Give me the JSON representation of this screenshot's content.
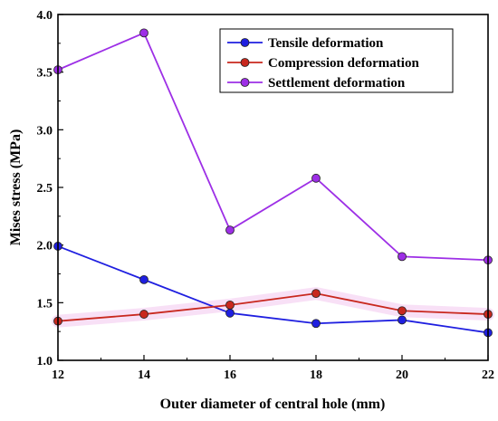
{
  "chart_data": {
    "type": "line",
    "xlabel": "Outer diameter of central hole (mm)",
    "ylabel": "Mises stress (MPa)",
    "x": [
      12,
      14,
      16,
      18,
      20,
      22
    ],
    "xlim": [
      12,
      22
    ],
    "ylim": [
      1.0,
      4.0
    ],
    "xticks": [
      "12",
      "14",
      "16",
      "18",
      "20",
      "22"
    ],
    "yticks": [
      "1.0",
      "1.5",
      "2.0",
      "2.5",
      "3.0",
      "3.5",
      "4.0"
    ],
    "grid": false,
    "legend_position": "top-right",
    "series": [
      {
        "name": "Tensile deformation",
        "color": "#1f1fe0",
        "values": [
          1.99,
          1.7,
          1.41,
          1.32,
          1.35,
          1.24
        ]
      },
      {
        "name": "Compression deformation",
        "color": "#c8281e",
        "values": [
          1.34,
          1.4,
          1.48,
          1.58,
          1.43,
          1.4
        ]
      },
      {
        "name": "Settlement deformation",
        "color": "#9d2fe6",
        "values": [
          3.52,
          3.84,
          2.13,
          2.58,
          1.9,
          1.87
        ]
      }
    ]
  }
}
